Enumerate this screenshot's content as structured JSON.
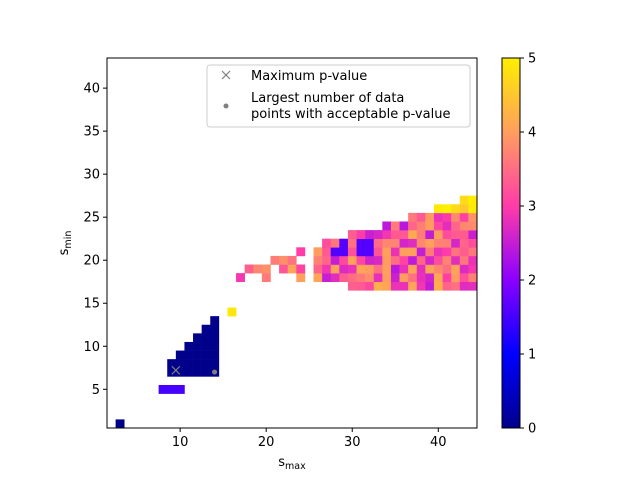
{
  "chart_data": {
    "type": "heatmap",
    "xlabel_base": "s",
    "xlabel_sub": "max",
    "ylabel_base": "s",
    "ylabel_sub": "min",
    "xlim": [
      1.5,
      44.5
    ],
    "ylim": [
      0.5,
      43.5
    ],
    "x_ticks": [
      "10",
      "20",
      "30",
      "40"
    ],
    "y_ticks": [
      "5",
      "10",
      "15",
      "20",
      "25",
      "30",
      "35",
      "40"
    ],
    "colorbar": {
      "range": [
        0,
        5
      ],
      "ticks": [
        "0",
        "1",
        "2",
        "3",
        "4",
        "5"
      ],
      "colormap": "gnuplot2-like",
      "stops": [
        "#00008b",
        "#0000ff",
        "#8a00ff",
        "#ff3ca8",
        "#ff9e5e",
        "#ffef00"
      ]
    },
    "legend": {
      "placement": "upper-right",
      "entries": [
        {
          "marker": "x",
          "label": "Maximum p-value"
        },
        {
          "marker": "dot",
          "label_lines": [
            "Largest number of data",
            "points with acceptable p-value"
          ]
        }
      ]
    },
    "markers": {
      "max_p_value": {
        "x": 9.5,
        "y": 7.2
      },
      "largest_n": {
        "x": 14,
        "y": 7
      }
    },
    "regions": [
      {
        "kind": "cell",
        "x": 3,
        "y": 1,
        "value": 0
      },
      {
        "kind": "strip",
        "x0": 8,
        "x1": 10,
        "y": 5,
        "value": 1.5
      },
      {
        "kind": "lower_triangle",
        "x0": 9,
        "x1": 14,
        "y0": 7,
        "value": 0
      },
      {
        "kind": "cell",
        "x": 16,
        "y": 14,
        "value": 4.9
      },
      {
        "kind": "noisy_band",
        "x0": 16,
        "x1": 44,
        "y0": 17,
        "y1": 27,
        "value": 3.3
      }
    ]
  }
}
